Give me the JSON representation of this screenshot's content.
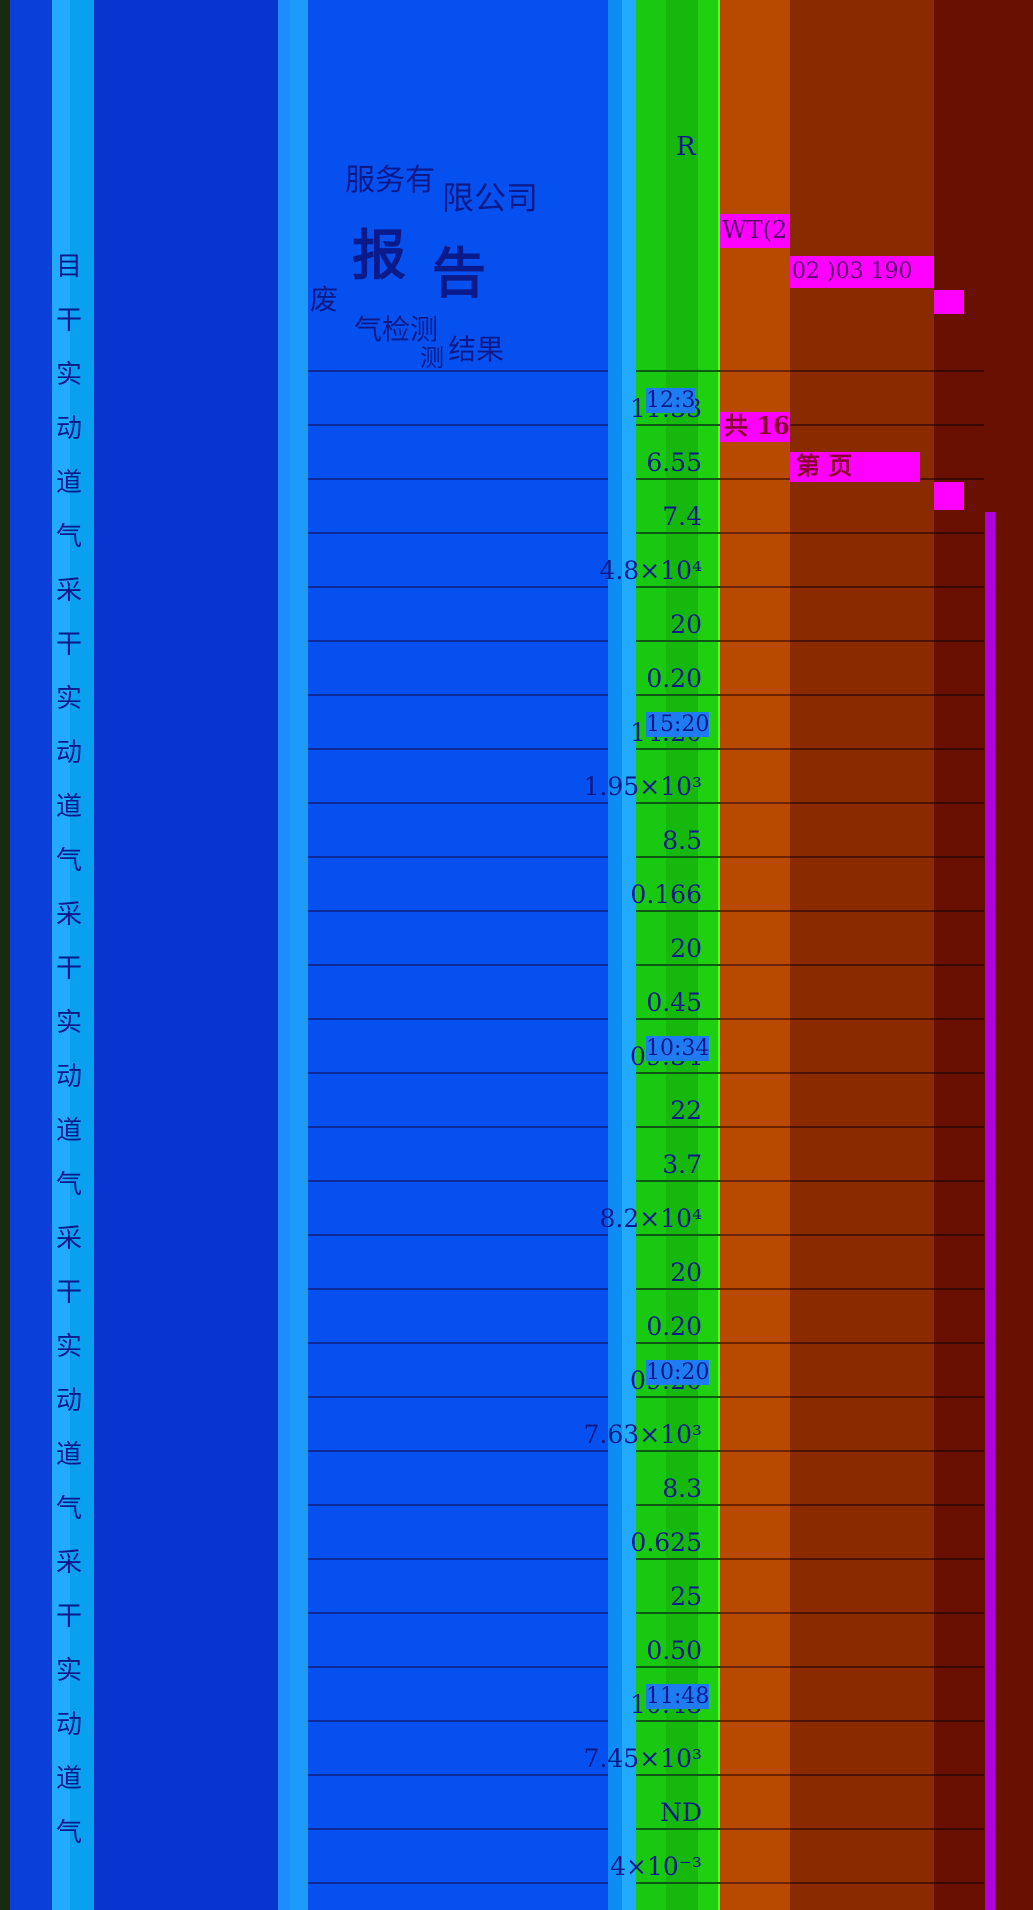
{
  "document": {
    "company": "限公司",
    "company_fragment": "服务有",
    "title_left": "报",
    "title_right": "告",
    "subtitle_fragment": "气检测",
    "results_label": "结果",
    "waste_fragment": "废",
    "report_no": "WT(2",
    "report_date_fragment": "02  )03  190",
    "page_total": "共 16",
    "page_current": "第  页",
    "code_fragment": "R",
    "table_fragment": "测"
  },
  "left_column": {
    "items": [
      "目",
      "干",
      "实",
      "动",
      "道",
      "气",
      "采",
      "干",
      "实",
      "动",
      "道",
      "气",
      "采",
      "干",
      "实",
      "动",
      "道",
      "气",
      "采",
      "干",
      "实",
      "动",
      "道",
      "气",
      "采",
      "干",
      "实",
      "动",
      "道",
      "气"
    ]
  },
  "table": {
    "rows": [
      {
        "main": "11:33",
        "sub": "12:3"
      },
      {
        "main": "6.55",
        "sub": ""
      },
      {
        "main": "7.4",
        "sub": ""
      },
      {
        "main": "4.8×10⁴",
        "sub": ""
      },
      {
        "main": "20",
        "sub": ""
      },
      {
        "main": "0.20",
        "sub": ""
      },
      {
        "main": "14:20",
        "sub": "15:20"
      },
      {
        "main": "1.95×10³",
        "sub": ""
      },
      {
        "main": "8.5",
        "sub": ""
      },
      {
        "main": "0.166",
        "sub": ""
      },
      {
        "main": "20",
        "sub": ""
      },
      {
        "main": "0.45",
        "sub": ""
      },
      {
        "main": "09:34",
        "sub": "10:34"
      },
      {
        "main": "22",
        "sub": ""
      },
      {
        "main": "3.7",
        "sub": ""
      },
      {
        "main": "8.2×10⁴",
        "sub": ""
      },
      {
        "main": "20",
        "sub": ""
      },
      {
        "main": "0.20",
        "sub": ""
      },
      {
        "main": "09:20",
        "sub": "10:20"
      },
      {
        "main": "7.63×10³",
        "sub": ""
      },
      {
        "main": "8.3",
        "sub": ""
      },
      {
        "main": "0.625",
        "sub": ""
      },
      {
        "main": "25",
        "sub": ""
      },
      {
        "main": "0.50",
        "sub": ""
      },
      {
        "main": "10:48",
        "sub": "11:48"
      },
      {
        "main": "7.45×10³",
        "sub": ""
      },
      {
        "main": "ND",
        "sub": ""
      },
      {
        "main": "4×10⁻³",
        "sub": ""
      }
    ]
  },
  "colors": {
    "bg_blue": "#0a3fd8",
    "accent_magenta": "#ff00ff",
    "band_orange": "#b84a00",
    "band_brown": "#8a2a00",
    "band_dark": "#6a1000",
    "band_green": "#1ed010"
  }
}
